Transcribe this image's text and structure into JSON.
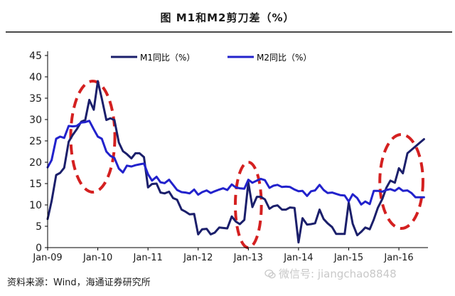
{
  "title": "图   M1和M2剪刀差（%）",
  "source": "资料来源：Wind，海通证券研究所",
  "watermark": "微信号: jiangchao8848",
  "colors": {
    "m1": "#1b1f6b",
    "m2": "#2222cc",
    "highlight": "#d42020",
    "axis": "#000000"
  },
  "chart_data": {
    "type": "line",
    "ylim": [
      0,
      45
    ],
    "yticks": [
      0,
      5,
      10,
      15,
      20,
      25,
      30,
      35,
      40,
      45
    ],
    "xticks": [
      "Jan-09",
      "Jan-10",
      "Jan-11",
      "Jan-12",
      "Jan-13",
      "Jan-14",
      "Jan-15",
      "Jan-16"
    ],
    "xlim": [
      2009.0,
      2016.58
    ],
    "legend_position": "top",
    "grid": false,
    "series": [
      {
        "name": "M1同比（%）",
        "color": "#1b1f6b",
        "points": [
          [
            2009.0,
            6.7
          ],
          [
            2009.08,
            10.9
          ],
          [
            2009.17,
            17.0
          ],
          [
            2009.25,
            17.5
          ],
          [
            2009.33,
            18.7
          ],
          [
            2009.42,
            24.8
          ],
          [
            2009.5,
            26.4
          ],
          [
            2009.58,
            27.7
          ],
          [
            2009.67,
            29.5
          ],
          [
            2009.75,
            29.9
          ],
          [
            2009.83,
            34.6
          ],
          [
            2009.92,
            32.3
          ],
          [
            2010.0,
            39.0
          ],
          [
            2010.08,
            34.9
          ],
          [
            2010.17,
            29.9
          ],
          [
            2010.25,
            30.3
          ],
          [
            2010.33,
            29.9
          ],
          [
            2010.42,
            24.6
          ],
          [
            2010.5,
            22.6
          ],
          [
            2010.58,
            21.9
          ],
          [
            2010.67,
            20.9
          ],
          [
            2010.75,
            22.1
          ],
          [
            2010.83,
            22.1
          ],
          [
            2010.92,
            21.2
          ],
          [
            2011.0,
            14.1
          ],
          [
            2011.08,
            14.9
          ],
          [
            2011.17,
            15.0
          ],
          [
            2011.25,
            12.9
          ],
          [
            2011.33,
            12.7
          ],
          [
            2011.42,
            13.1
          ],
          [
            2011.5,
            11.6
          ],
          [
            2011.58,
            11.2
          ],
          [
            2011.67,
            8.9
          ],
          [
            2011.75,
            8.4
          ],
          [
            2011.83,
            7.8
          ],
          [
            2011.92,
            7.9
          ],
          [
            2012.0,
            3.1
          ],
          [
            2012.08,
            4.3
          ],
          [
            2012.17,
            4.4
          ],
          [
            2012.25,
            3.1
          ],
          [
            2012.33,
            3.5
          ],
          [
            2012.42,
            4.7
          ],
          [
            2012.5,
            4.6
          ],
          [
            2012.58,
            4.5
          ],
          [
            2012.67,
            7.3
          ],
          [
            2012.75,
            6.1
          ],
          [
            2012.83,
            5.5
          ],
          [
            2012.92,
            6.5
          ],
          [
            2013.0,
            15.3
          ],
          [
            2013.08,
            9.5
          ],
          [
            2013.17,
            11.9
          ],
          [
            2013.25,
            11.9
          ],
          [
            2013.33,
            11.3
          ],
          [
            2013.42,
            9.1
          ],
          [
            2013.5,
            9.7
          ],
          [
            2013.58,
            9.9
          ],
          [
            2013.67,
            8.9
          ],
          [
            2013.75,
            8.9
          ],
          [
            2013.83,
            9.4
          ],
          [
            2013.92,
            9.3
          ],
          [
            2014.0,
            1.2
          ],
          [
            2014.08,
            6.9
          ],
          [
            2014.17,
            5.4
          ],
          [
            2014.25,
            5.5
          ],
          [
            2014.33,
            5.7
          ],
          [
            2014.42,
            8.9
          ],
          [
            2014.5,
            6.7
          ],
          [
            2014.58,
            5.7
          ],
          [
            2014.67,
            4.8
          ],
          [
            2014.75,
            3.2
          ],
          [
            2014.83,
            3.2
          ],
          [
            2014.92,
            3.2
          ],
          [
            2015.0,
            10.6
          ],
          [
            2015.08,
            5.6
          ],
          [
            2015.17,
            2.9
          ],
          [
            2015.25,
            3.7
          ],
          [
            2015.33,
            4.7
          ],
          [
            2015.42,
            4.3
          ],
          [
            2015.5,
            6.6
          ],
          [
            2015.58,
            9.3
          ],
          [
            2015.67,
            11.4
          ],
          [
            2015.75,
            14.0
          ],
          [
            2015.83,
            15.7
          ],
          [
            2015.92,
            15.2
          ],
          [
            2016.0,
            18.6
          ],
          [
            2016.08,
            17.4
          ],
          [
            2016.17,
            22.1
          ],
          [
            2016.25,
            22.9
          ],
          [
            2016.33,
            23.7
          ],
          [
            2016.42,
            24.6
          ],
          [
            2016.5,
            25.4
          ]
        ]
      },
      {
        "name": "M2同比（%）",
        "color": "#2222cc",
        "points": [
          [
            2009.0,
            18.8
          ],
          [
            2009.08,
            20.5
          ],
          [
            2009.17,
            25.5
          ],
          [
            2009.25,
            26.0
          ],
          [
            2009.33,
            25.7
          ],
          [
            2009.42,
            28.5
          ],
          [
            2009.5,
            28.4
          ],
          [
            2009.58,
            28.5
          ],
          [
            2009.67,
            29.3
          ],
          [
            2009.75,
            29.4
          ],
          [
            2009.83,
            29.7
          ],
          [
            2009.92,
            27.7
          ],
          [
            2010.0,
            26.0
          ],
          [
            2010.08,
            25.5
          ],
          [
            2010.17,
            22.5
          ],
          [
            2010.25,
            21.5
          ],
          [
            2010.33,
            21.0
          ],
          [
            2010.42,
            18.5
          ],
          [
            2010.5,
            17.6
          ],
          [
            2010.58,
            19.2
          ],
          [
            2010.67,
            19.0
          ],
          [
            2010.75,
            19.3
          ],
          [
            2010.83,
            19.5
          ],
          [
            2010.92,
            19.7
          ],
          [
            2011.0,
            17.2
          ],
          [
            2011.08,
            15.7
          ],
          [
            2011.17,
            16.6
          ],
          [
            2011.25,
            15.3
          ],
          [
            2011.33,
            15.1
          ],
          [
            2011.42,
            15.9
          ],
          [
            2011.5,
            14.7
          ],
          [
            2011.58,
            13.5
          ],
          [
            2011.67,
            13.0
          ],
          [
            2011.75,
            12.9
          ],
          [
            2011.83,
            12.7
          ],
          [
            2011.92,
            13.6
          ],
          [
            2012.0,
            12.4
          ],
          [
            2012.08,
            13.0
          ],
          [
            2012.17,
            13.4
          ],
          [
            2012.25,
            12.8
          ],
          [
            2012.33,
            13.2
          ],
          [
            2012.42,
            13.6
          ],
          [
            2012.5,
            13.9
          ],
          [
            2012.58,
            13.5
          ],
          [
            2012.67,
            14.8
          ],
          [
            2012.75,
            14.1
          ],
          [
            2012.83,
            13.9
          ],
          [
            2012.92,
            13.8
          ],
          [
            2013.0,
            15.9
          ],
          [
            2013.08,
            15.2
          ],
          [
            2013.17,
            15.7
          ],
          [
            2013.25,
            16.1
          ],
          [
            2013.33,
            15.8
          ],
          [
            2013.42,
            14.0
          ],
          [
            2013.5,
            14.5
          ],
          [
            2013.58,
            14.7
          ],
          [
            2013.67,
            14.2
          ],
          [
            2013.75,
            14.3
          ],
          [
            2013.83,
            14.2
          ],
          [
            2013.92,
            13.6
          ],
          [
            2014.0,
            13.2
          ],
          [
            2014.08,
            13.3
          ],
          [
            2014.17,
            12.1
          ],
          [
            2014.25,
            13.2
          ],
          [
            2014.33,
            13.4
          ],
          [
            2014.42,
            14.7
          ],
          [
            2014.5,
            13.5
          ],
          [
            2014.58,
            12.8
          ],
          [
            2014.67,
            12.9
          ],
          [
            2014.75,
            12.6
          ],
          [
            2014.83,
            12.3
          ],
          [
            2014.92,
            12.2
          ],
          [
            2015.0,
            10.8
          ],
          [
            2015.08,
            12.5
          ],
          [
            2015.17,
            11.6
          ],
          [
            2015.25,
            10.1
          ],
          [
            2015.33,
            10.8
          ],
          [
            2015.42,
            10.2
          ],
          [
            2015.5,
            13.3
          ],
          [
            2015.58,
            13.3
          ],
          [
            2015.67,
            13.1
          ],
          [
            2015.75,
            13.5
          ],
          [
            2015.83,
            13.7
          ],
          [
            2015.92,
            13.3
          ],
          [
            2016.0,
            14.0
          ],
          [
            2016.08,
            13.3
          ],
          [
            2016.17,
            13.4
          ],
          [
            2016.25,
            12.8
          ],
          [
            2016.33,
            11.8
          ],
          [
            2016.42,
            11.8
          ],
          [
            2016.5,
            11.8
          ]
        ]
      }
    ],
    "highlights": [
      {
        "cx": 2009.9,
        "cy": 26,
        "rx": 0.44,
        "ry": 13
      },
      {
        "cx": 2013.0,
        "cy": 10,
        "rx": 0.26,
        "ry": 10
      },
      {
        "cx": 2016.05,
        "cy": 15.5,
        "rx": 0.43,
        "ry": 11
      }
    ]
  }
}
